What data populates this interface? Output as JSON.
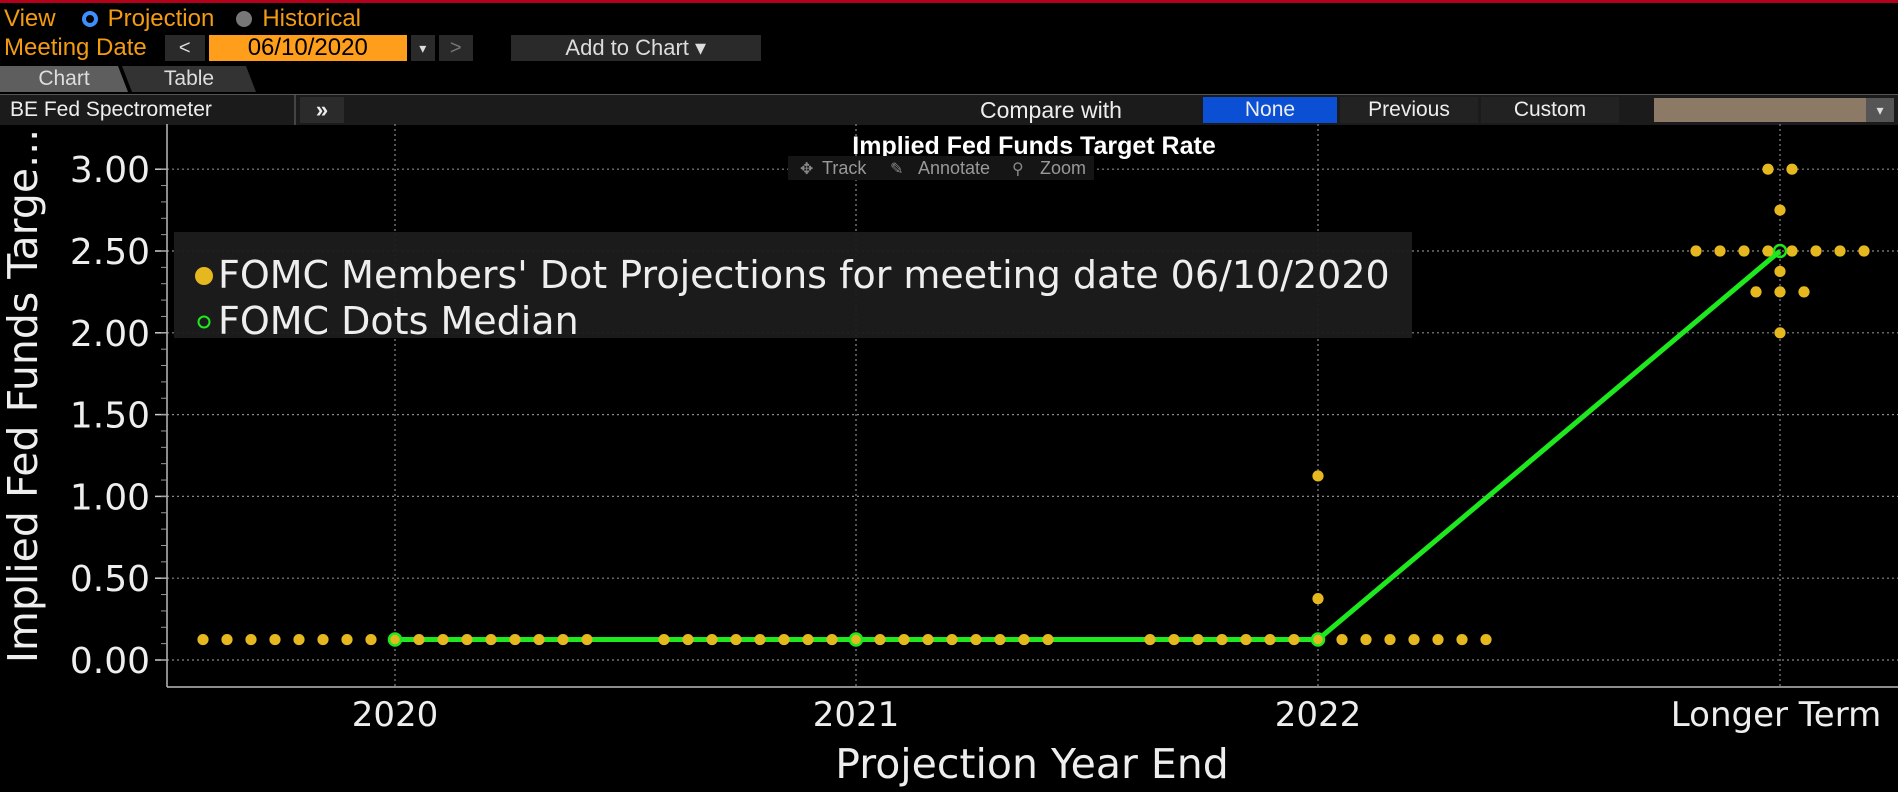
{
  "header": {
    "view_label": "View",
    "projection_label": "Projection",
    "historical_label": "Historical",
    "meeting_date_label": "Meeting Date",
    "prev_icon": "<",
    "meeting_date_value": "06/10/2020",
    "dropdown_icon": "▾",
    "next_icon": ">",
    "add_to_chart_label": "Add to Chart ▾"
  },
  "tabs": [
    {
      "label": "Chart",
      "active": true
    },
    {
      "label": "Table",
      "active": false
    }
  ],
  "toolbar": {
    "title": "BE Fed Spectrometer",
    "expand_icon": "»",
    "compare_label": "Compare with",
    "compare_options": [
      "None",
      "Previous",
      "Custom"
    ],
    "compare_selected": "None",
    "swatch_color": "#8c7a66",
    "swatch_dropdown_icon": "▾"
  },
  "chart_tools": {
    "track": "Track",
    "annotate": "Annotate",
    "zoom": "Zoom"
  },
  "colors": {
    "dots": "#e6b820",
    "median": "#1ee81e",
    "accent": "#ff9e1b"
  },
  "chart_data": {
    "type": "scatter",
    "title": "Implied Fed Funds Target Rate",
    "xlabel": "Projection Year End",
    "ylabel": "Implied Fed Funds Targe...",
    "categories": [
      "2020",
      "2021",
      "2022",
      "Longer Term"
    ],
    "yticks": [
      "0.00",
      "0.50",
      "1.00",
      "1.50",
      "2.00",
      "2.50",
      "3.00"
    ],
    "ylim": [
      -0.15,
      3.2
    ],
    "grid": true,
    "legend_position": "top-left",
    "series": [
      {
        "name": "FOMC Members' Dot Projections for meeting date 06/10/2020",
        "points": [
          {
            "category": "2020",
            "value": 0.125,
            "count": 17
          },
          {
            "category": "2021",
            "value": 0.125,
            "count": 17
          },
          {
            "category": "2022",
            "value": 0.125,
            "count": 15
          },
          {
            "category": "2022",
            "value": 0.375,
            "count": 1
          },
          {
            "category": "2022",
            "value": 1.125,
            "count": 1
          },
          {
            "category": "Longer Term",
            "value": 3.0,
            "count": 2
          },
          {
            "category": "Longer Term",
            "value": 2.75,
            "count": 1
          },
          {
            "category": "Longer Term",
            "value": 2.5,
            "count": 8
          },
          {
            "category": "Longer Term",
            "value": 2.375,
            "count": 1
          },
          {
            "category": "Longer Term",
            "value": 2.25,
            "count": 3
          },
          {
            "category": "Longer Term",
            "value": 2.0,
            "count": 1
          }
        ]
      },
      {
        "name": "FOMC Dots Median",
        "points": [
          {
            "category": "2020",
            "value": 0.125
          },
          {
            "category": "2021",
            "value": 0.125
          },
          {
            "category": "2022",
            "value": 0.125
          },
          {
            "category": "Longer Term",
            "value": 2.5
          }
        ]
      }
    ]
  }
}
